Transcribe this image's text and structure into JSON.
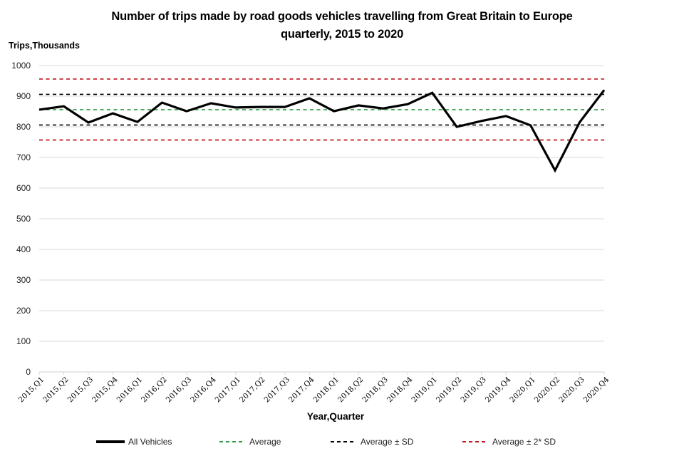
{
  "chart_data": {
    "type": "line",
    "title_line1": "Number of trips made by road goods vehicles travelling from Great Britain to Europe",
    "title_line2": "quarterly, 2015 to 2020",
    "ylabel": "Trips,Thousands",
    "xlabel": "Year,Quarter",
    "ylim": [
      0,
      1000
    ],
    "yticks": [
      0,
      100,
      200,
      300,
      400,
      500,
      600,
      700,
      800,
      900,
      1000
    ],
    "grid": true,
    "legend_position": "bottom",
    "categories": [
      "2015,Q1",
      "2015,Q2",
      "2015,Q3",
      "2015,Q4",
      "2016,Q1",
      "2016,Q2",
      "2016,Q3",
      "2016,Q4",
      "2017,Q1",
      "2017,Q2",
      "2017,Q3",
      "2017,Q4",
      "2018,Q1",
      "2018,Q2",
      "2018,Q3",
      "2018,Q4",
      "2019,Q1",
      "2019,Q2",
      "2019,Q3",
      "2019,Q4",
      "2020,Q1",
      "2020,Q2",
      "2020,Q3",
      "2020,Q4"
    ],
    "series": [
      {
        "name": "All Vehicles",
        "color": "#000000",
        "style": "solid",
        "values": [
          856,
          867,
          814,
          844,
          816,
          879,
          851,
          877,
          863,
          865,
          865,
          893,
          851,
          870,
          860,
          874,
          911,
          800,
          819,
          835,
          805,
          658,
          815,
          920
        ]
      },
      {
        "name": "Average",
        "color": "#2e9e44",
        "style": "dashed",
        "constant": 856
      },
      {
        "name": "Average ± SD",
        "color": "#000000",
        "style": "dashed",
        "constant_pair": [
          806,
          906
        ]
      },
      {
        "name": "Average ± 2* SD",
        "color": "#c0161a",
        "style": "dashed",
        "constant_pair": [
          757,
          956
        ]
      }
    ]
  },
  "legend": [
    {
      "label": "All Vehicles",
      "color": "#000000",
      "style": "solid"
    },
    {
      "label": "Average",
      "color": "#2e9e44",
      "style": "dashed"
    },
    {
      "label": "Average ± SD",
      "color": "#000000",
      "style": "dashed"
    },
    {
      "label": "Average ± 2* SD",
      "color": "#c0161a",
      "style": "dashed"
    }
  ]
}
